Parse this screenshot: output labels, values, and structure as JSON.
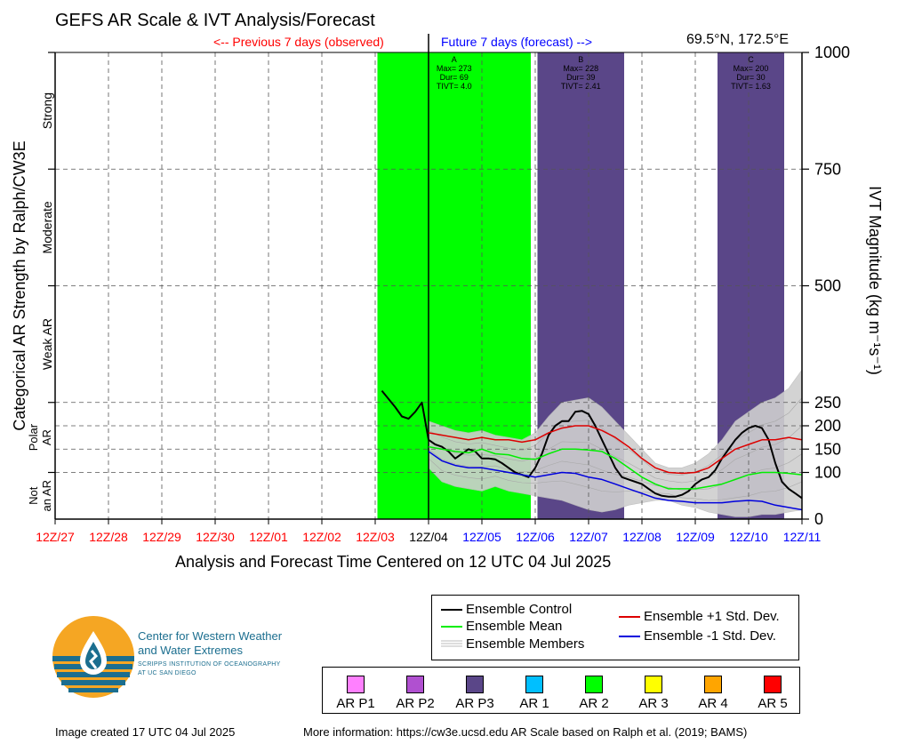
{
  "title": "GEFS AR Scale & IVT Analysis/Forecast",
  "location": "69.5°N, 172.5°E",
  "previous_label": "<-- Previous 7 days (observed)",
  "future_label": "Future 7 days (forecast) -->",
  "xlabel": "Analysis and Forecast Time Centered on 12 UTC 04 Jul 2025",
  "ylabel_left": "Categorical AR Strength by Ralph/CW3E",
  "ylabel_right": "IVT Magnitude (kg m⁻¹s⁻¹)",
  "footer": {
    "created": "Image created 17 UTC 04 Jul 2025",
    "more_info": "More information: https://cw3e.ucsd.edu AR Scale based on Ralph et al. (2019; BAMS)"
  },
  "logo": {
    "line1": "Center for Western Weather",
    "line2": "and Water Extremes",
    "line3": "SCRIPPS INSTITUTION OF OCEANOGRAPHY",
    "line4": "AT UC SAN DIEGO"
  },
  "colors": {
    "control": "#000000",
    "mean": "#00ee00",
    "plus_std": "#dd0000",
    "minus_std": "#0000dd",
    "members": "#bbbbbb",
    "ar_p1": "#ff80ff",
    "ar_p2": "#b050d0",
    "ar_p3": "#5a4688",
    "ar_1": "#00bfff",
    "ar_2": "#00ff00",
    "ar_3": "#ffff00",
    "ar_4": "#ffa500",
    "ar_5": "#ff0000"
  },
  "chart_data": {
    "type": "line",
    "x_unit": "hours relative to 12Z 04 Jul 2025",
    "xlim": [
      -168,
      168
    ],
    "ylim": [
      0,
      1000
    ],
    "grid": true,
    "x_ticks": [
      {
        "hour": -168,
        "label": "12Z/27",
        "color": "#ff0000"
      },
      {
        "hour": -144,
        "label": "12Z/28",
        "color": "#ff0000"
      },
      {
        "hour": -120,
        "label": "12Z/29",
        "color": "#ff0000"
      },
      {
        "hour": -96,
        "label": "12Z/30",
        "color": "#ff0000"
      },
      {
        "hour": -72,
        "label": "12Z/01",
        "color": "#ff0000"
      },
      {
        "hour": -48,
        "label": "12Z/02",
        "color": "#ff0000"
      },
      {
        "hour": -24,
        "label": "12Z/03",
        "color": "#ff0000"
      },
      {
        "hour": 0,
        "label": "12Z/04",
        "color": "#000000"
      },
      {
        "hour": 24,
        "label": "12Z/05",
        "color": "#0000ff"
      },
      {
        "hour": 48,
        "label": "12Z/06",
        "color": "#0000ff"
      },
      {
        "hour": 72,
        "label": "12Z/07",
        "color": "#0000ff"
      },
      {
        "hour": 96,
        "label": "12Z/08",
        "color": "#0000ff"
      },
      {
        "hour": 120,
        "label": "12Z/09",
        "color": "#0000ff"
      },
      {
        "hour": 144,
        "label": "12Z/10",
        "color": "#0000ff"
      },
      {
        "hour": 168,
        "label": "12Z/11",
        "color": "#0000ff"
      }
    ],
    "y_ticks_right": [
      0,
      100,
      150,
      200,
      250,
      500,
      750,
      1000
    ],
    "dashed_levels": [
      100,
      150,
      200,
      250,
      500,
      750
    ],
    "categories_left": [
      {
        "label": "Strong",
        "lo": 750,
        "hi": 1000
      },
      {
        "label": "Moderate",
        "lo": 500,
        "hi": 750
      },
      {
        "label": "Weak AR",
        "lo": 250,
        "hi": 500
      },
      {
        "label": "Polar AR",
        "lo": 100,
        "hi": 250
      },
      {
        "label": "Not an AR",
        "lo": 0,
        "hi": 100
      }
    ],
    "ar_events": [
      {
        "id": "A",
        "start": -23,
        "end": 46,
        "color_key": "ar_2",
        "max": "Max= 273",
        "dur": "Dur= 69",
        "tivt": "TIVT= 4.0"
      },
      {
        "id": "B",
        "start": 49,
        "end": 88,
        "color_key": "ar_p3",
        "max": "Max= 228",
        "dur": "Dur= 39",
        "tivt": "TIVT= 2.41"
      },
      {
        "id": "C",
        "start": 130,
        "end": 160,
        "color_key": "ar_p3",
        "max": "Max= 200",
        "dur": "Dur= 30",
        "tivt": "TIVT= 1.63"
      }
    ],
    "member_spread": {
      "x": [
        0,
        6,
        12,
        18,
        24,
        30,
        36,
        42,
        48,
        54,
        60,
        66,
        72,
        78,
        84,
        90,
        96,
        102,
        108,
        114,
        120,
        126,
        132,
        138,
        144,
        150,
        156,
        162,
        168
      ],
      "upper": [
        210,
        200,
        190,
        185,
        190,
        180,
        175,
        170,
        185,
        220,
        250,
        255,
        260,
        240,
        210,
        180,
        150,
        120,
        110,
        110,
        120,
        140,
        170,
        210,
        230,
        250,
        260,
        280,
        320
      ],
      "lower": [
        110,
        80,
        70,
        65,
        60,
        70,
        60,
        55,
        50,
        45,
        40,
        30,
        20,
        15,
        20,
        30,
        35,
        40,
        40,
        30,
        25,
        15,
        10,
        5,
        5,
        10,
        10,
        15,
        20
      ]
    },
    "series": [
      {
        "name": "Ensemble Control",
        "color_key": "control",
        "x": [
          -21,
          -15,
          -12,
          -9,
          -6,
          -3,
          0,
          3,
          6,
          9,
          12,
          15,
          18,
          21,
          24,
          27,
          30,
          33,
          36,
          39,
          42,
          45,
          48,
          51,
          54,
          57,
          60,
          63,
          66,
          69,
          72,
          75,
          78,
          81,
          84,
          87,
          90,
          93,
          96,
          99,
          102,
          105,
          108,
          111,
          114,
          117,
          120,
          123,
          126,
          129,
          132,
          135,
          138,
          141,
          144,
          147,
          150,
          153,
          156,
          159,
          162,
          165,
          168
        ],
        "y": [
          275,
          240,
          220,
          215,
          230,
          250,
          170,
          160,
          155,
          145,
          130,
          140,
          150,
          145,
          130,
          130,
          128,
          120,
          110,
          100,
          95,
          90,
          110,
          140,
          180,
          200,
          210,
          210,
          230,
          232,
          225,
          200,
          170,
          140,
          110,
          90,
          85,
          80,
          75,
          65,
          55,
          50,
          48,
          48,
          52,
          60,
          75,
          85,
          90,
          105,
          130,
          150,
          170,
          185,
          195,
          200,
          195,
          170,
          120,
          80,
          65,
          55,
          45
        ]
      },
      {
        "name": "Ensemble Mean",
        "color_key": "mean",
        "x": [
          0,
          6,
          12,
          18,
          24,
          30,
          36,
          42,
          48,
          54,
          60,
          66,
          72,
          78,
          84,
          90,
          96,
          102,
          108,
          114,
          120,
          126,
          132,
          138,
          144,
          150,
          156,
          162,
          168
        ],
        "y": [
          155,
          150,
          145,
          142,
          150,
          140,
          138,
          130,
          128,
          140,
          150,
          150,
          148,
          145,
          130,
          110,
          90,
          75,
          65,
          65,
          65,
          70,
          75,
          85,
          95,
          100,
          100,
          98,
          95
        ]
      },
      {
        "name": "Ensemble +1 Std. Dev.",
        "color_key": "plus_std",
        "x": [
          0,
          6,
          12,
          18,
          24,
          30,
          36,
          42,
          48,
          54,
          60,
          66,
          72,
          78,
          84,
          90,
          96,
          102,
          108,
          114,
          120,
          126,
          132,
          138,
          144,
          150,
          156,
          162,
          168
        ],
        "y": [
          185,
          180,
          175,
          170,
          175,
          170,
          170,
          165,
          170,
          185,
          195,
          200,
          200,
          190,
          175,
          155,
          130,
          110,
          100,
          98,
          100,
          110,
          130,
          150,
          160,
          170,
          170,
          175,
          170
        ]
      },
      {
        "name": "Ensemble -1 Std. Dev.",
        "color_key": "minus_std",
        "x": [
          0,
          6,
          12,
          18,
          24,
          30,
          36,
          42,
          48,
          54,
          60,
          66,
          72,
          78,
          84,
          90,
          96,
          102,
          108,
          114,
          120,
          126,
          132,
          138,
          144,
          150,
          156,
          162,
          168
        ],
        "y": [
          145,
          125,
          115,
          110,
          110,
          105,
          100,
          95,
          90,
          95,
          100,
          98,
          90,
          85,
          75,
          65,
          55,
          45,
          40,
          38,
          35,
          35,
          35,
          38,
          40,
          38,
          30,
          25,
          20
        ]
      }
    ]
  },
  "legend": {
    "control": "Ensemble Control",
    "mean": "Ensemble Mean",
    "members": "Ensemble Members",
    "plus_std": "Ensemble +1 Std. Dev.",
    "minus_std": "Ensemble -1 Std. Dev."
  },
  "ar_legend": [
    {
      "label": "AR P1",
      "color_key": "ar_p1"
    },
    {
      "label": "AR P2",
      "color_key": "ar_p2"
    },
    {
      "label": "AR P3",
      "color_key": "ar_p3"
    },
    {
      "label": "AR 1",
      "color_key": "ar_1"
    },
    {
      "label": "AR 2",
      "color_key": "ar_2"
    },
    {
      "label": "AR 3",
      "color_key": "ar_3"
    },
    {
      "label": "AR 4",
      "color_key": "ar_4"
    },
    {
      "label": "AR 5",
      "color_key": "ar_5"
    }
  ]
}
